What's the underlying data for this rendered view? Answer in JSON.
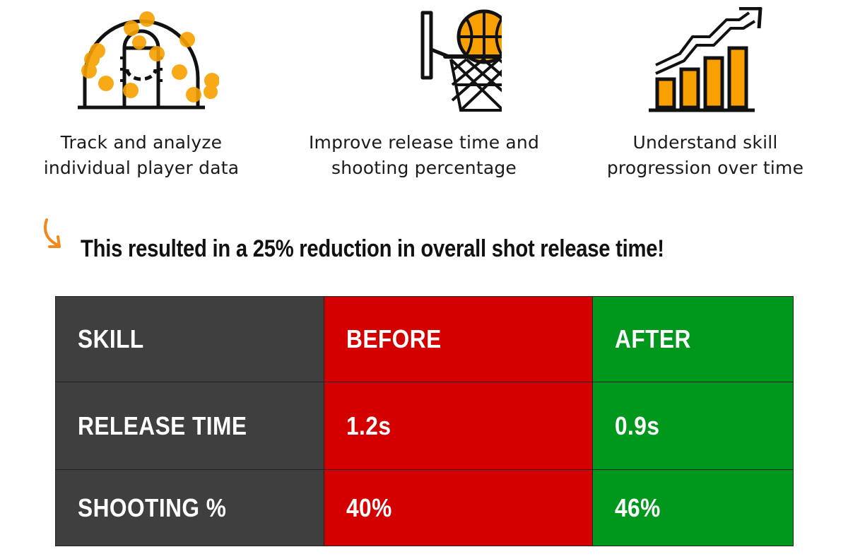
{
  "features": [
    {
      "icon": "court-heatmap-icon",
      "line1": "Track and analyze",
      "line2": "individual player data"
    },
    {
      "icon": "basketball-hoop-icon",
      "line1": "Improve release time and",
      "line2": "shooting percentage"
    },
    {
      "icon": "growth-chart-icon",
      "line1": "Understand skill",
      "line2": "progression over time"
    }
  ],
  "headline": "This resulted in a 25% reduction in overall shot release time!",
  "colors": {
    "accent_orange": "#f7a000",
    "arrow_orange": "#f08a1c",
    "skill_column": "#3f3f3f",
    "before_column": "#d40000",
    "after_column": "#00981c"
  },
  "table": {
    "headers": [
      "SKILL",
      "BEFORE",
      "AFTER"
    ],
    "rows": [
      [
        "RELEASE TIME",
        "1.2s",
        "0.9s"
      ],
      [
        "SHOOTING %",
        "40%",
        "46%"
      ]
    ]
  }
}
